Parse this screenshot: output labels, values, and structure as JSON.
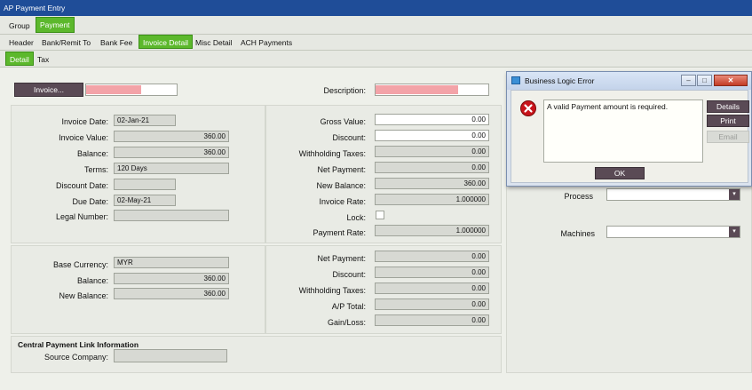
{
  "window": {
    "title": "AP Payment Entry"
  },
  "tabs_top": [
    "Group",
    "Payment"
  ],
  "tabs_second": [
    "Header",
    "Bank/Remit To",
    "Bank Fee",
    "Invoice Detail",
    "Misc Detail",
    "ACH Payments"
  ],
  "tabs_third": [
    "Detail",
    "Tax"
  ],
  "invoice": {
    "button_label": "Invoice...",
    "description_label": "Description:"
  },
  "left_fields": {
    "invoice_date": {
      "label": "Invoice Date:",
      "value": "02-Jan-21"
    },
    "invoice_value": {
      "label": "Invoice Value:",
      "value": "360.00"
    },
    "balance": {
      "label": "Balance:",
      "value": "360.00"
    },
    "terms": {
      "label": "Terms:",
      "value": "120 Days"
    },
    "discount_date": {
      "label": "Discount Date:",
      "value": ""
    },
    "due_date": {
      "label": "Due Date:",
      "value": "02-May-21"
    },
    "legal_number": {
      "label": "Legal Number:",
      "value": ""
    }
  },
  "right_fields": {
    "gross_value": {
      "label": "Gross Value:",
      "value": "0.00"
    },
    "discount": {
      "label": "Discount:",
      "value": "0.00"
    },
    "withholding_taxes": {
      "label": "Withholding Taxes:",
      "value": "0.00"
    },
    "net_payment": {
      "label": "Net Payment:",
      "value": "0.00"
    },
    "new_balance": {
      "label": "New Balance:",
      "value": "360.00"
    },
    "invoice_rate": {
      "label": "Invoice Rate:",
      "value": "1.000000"
    },
    "lock": {
      "label": "Lock:"
    },
    "payment_rate": {
      "label": "Payment Rate:",
      "value": "1.000000"
    }
  },
  "base_fields": {
    "base_currency": {
      "label": "Base Currency:",
      "value": "MYR"
    },
    "balance": {
      "label": "Balance:",
      "value": "360.00"
    },
    "new_balance": {
      "label": "New Balance:",
      "value": "360.00"
    }
  },
  "base_right": {
    "net_payment": {
      "label": "Net Payment:",
      "value": "0.00"
    },
    "discount": {
      "label": "Discount:",
      "value": "0.00"
    },
    "withholding_taxes": {
      "label": "Withholding Taxes:",
      "value": "0.00"
    },
    "ap_total": {
      "label": "A/P Total:",
      "value": "0.00"
    },
    "gain_loss": {
      "label": "Gain/Loss:",
      "value": "0.00"
    }
  },
  "central": {
    "header": "Central Payment Link Information",
    "source_company_label": "Source Company:",
    "source_company_value": ""
  },
  "side": {
    "process_label": "Process",
    "machines_label": "Machines"
  },
  "dialog": {
    "title": "Business Logic Error",
    "message": "A valid Payment amount is required.",
    "details": "Details",
    "print": "Print",
    "email": "Email",
    "ok": "OK",
    "icon": "error-icon"
  },
  "colors": {
    "accent": "#5cb82c",
    "titlebar": "#1f4d98",
    "error_field": "#f3a3a8",
    "dark_button": "#5a4a55"
  }
}
